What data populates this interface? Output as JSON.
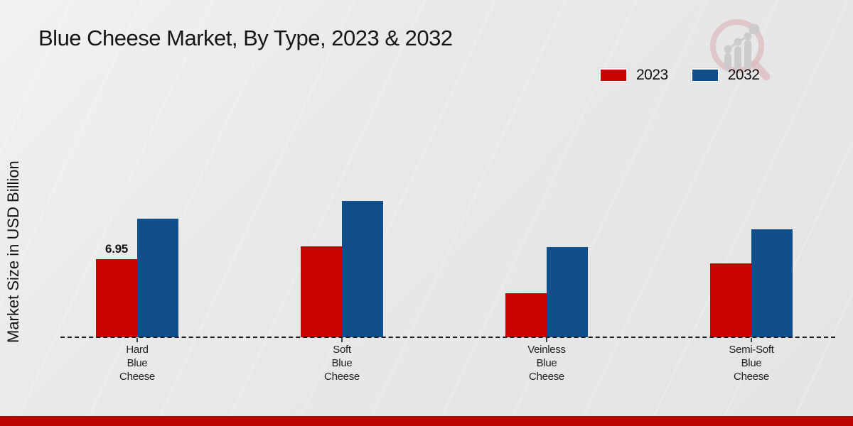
{
  "title": "Blue Cheese Market, By Type, 2023 & 2032",
  "ylabel": "Market Size in USD Billion",
  "legend": {
    "items": [
      {
        "label": "2023",
        "color": "#c90302"
      },
      {
        "label": "2032",
        "color": "#114f8c"
      }
    ]
  },
  "colors": {
    "series_2023": "#c90302",
    "series_2032": "#114f8c",
    "footer_band": "#bf0504",
    "baseline": "#1b1b1b",
    "background": "#e8e8e9"
  },
  "watermark": {
    "name": "market-research-magnifier-logo"
  },
  "chart_data": {
    "type": "bar",
    "title": "Blue Cheese Market, By Type, 2023 & 2032",
    "ylabel": "Market Size in USD Billion",
    "xlabel": "",
    "categories": [
      "Hard Blue Cheese",
      "Soft Blue Cheese",
      "Veinless Blue Cheese",
      "Semi-Soft Blue Cheese"
    ],
    "categories_multiline": [
      [
        "Hard",
        "Blue",
        "Cheese"
      ],
      [
        "Soft",
        "Blue",
        "Cheese"
      ],
      [
        "Veinless",
        "Blue",
        "Cheese"
      ],
      [
        "Semi-Soft",
        "Blue",
        "Cheese"
      ]
    ],
    "series": [
      {
        "name": "2023",
        "color": "#c90302",
        "values": [
          6.95,
          8.1,
          3.9,
          6.6
        ]
      },
      {
        "name": "2032",
        "color": "#114f8c",
        "values": [
          10.55,
          12.1,
          8.0,
          9.6
        ]
      }
    ],
    "annotations": [
      {
        "series_index": 0,
        "category_index": 0,
        "text": "6.95"
      }
    ],
    "ylim": [
      0,
      13
    ],
    "grid": false,
    "y_axis_ticks_visible": false,
    "baseline_style": "dashed",
    "legend_position": "top-right"
  }
}
